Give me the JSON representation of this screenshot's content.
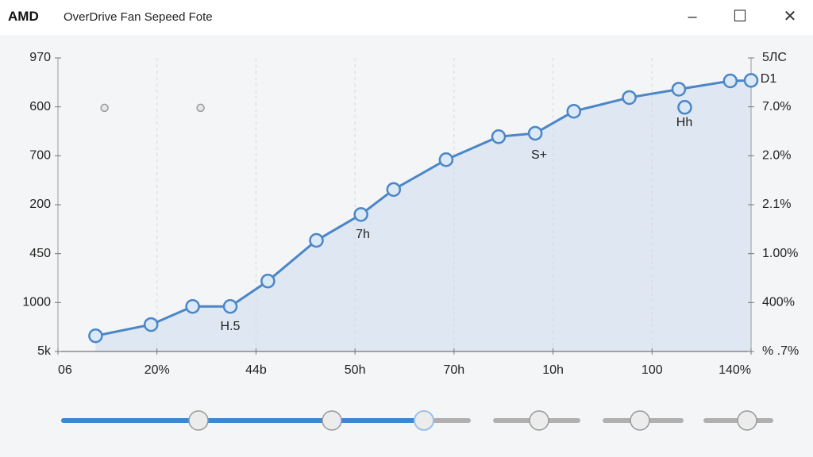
{
  "window": {
    "logo": "AMD",
    "title": "OverDrive Fan Sepeed Fote"
  },
  "chart_data": {
    "type": "line",
    "xlim": [
      0,
      7
    ],
    "xticks": [
      {
        "value": 0,
        "label": "06"
      },
      {
        "value": 1,
        "label": "20%"
      },
      {
        "value": 2,
        "label": "44b"
      },
      {
        "value": 3,
        "label": "50h"
      },
      {
        "value": 4,
        "label": "70h"
      },
      {
        "value": 5,
        "label": "10h"
      },
      {
        "value": 6,
        "label": "100"
      },
      {
        "value": 7,
        "label": "140%"
      }
    ],
    "ylim": [
      0,
      6
    ],
    "yticks": [
      {
        "value": 0,
        "label": "5k"
      },
      {
        "value": 1,
        "label": "1000"
      },
      {
        "value": 2,
        "label": "450"
      },
      {
        "value": 3,
        "label": "200"
      },
      {
        "value": 4,
        "label": "700"
      },
      {
        "value": 5,
        "label": "600"
      },
      {
        "value": 6,
        "label": "970"
      }
    ],
    "y2lim": [
      0,
      6
    ],
    "y2ticks": [
      {
        "value": 0,
        "label": "% .7%"
      },
      {
        "value": 1,
        "label": "400%"
      },
      {
        "value": 2,
        "label": "1.00%"
      },
      {
        "value": 3,
        "label": "2.1%"
      },
      {
        "value": 4,
        "label": "2.0%"
      },
      {
        "value": 5,
        "label": "7.0%"
      },
      {
        "value": 6,
        "label": "5ЛC"
      }
    ],
    "grid": true,
    "series": [
      {
        "color": "#4a86c8",
        "x": [
          0.38,
          0.94,
          1.36,
          1.74,
          2.12,
          2.61,
          3.06,
          3.39,
          3.92,
          4.45,
          4.82,
          5.21,
          5.77,
          6.27,
          6.79,
          7.0
        ],
        "values": [
          0.32,
          0.55,
          0.92,
          0.92,
          1.44,
          2.27,
          2.8,
          3.31,
          3.92,
          4.39,
          4.46,
          4.91,
          5.19,
          5.36,
          5.53,
          5.54
        ]
      },
      {
        "color": "#9a9a9a",
        "x": [
          0.47,
          1.44
        ],
        "values": [
          4.98,
          4.98
        ]
      },
      {
        "color": "#4a86c8",
        "x": [
          6.33
        ],
        "values": [
          4.99
        ]
      }
    ],
    "annotations": [
      "H.5",
      "7h",
      "S+",
      "Hh",
      "D1"
    ]
  }
}
